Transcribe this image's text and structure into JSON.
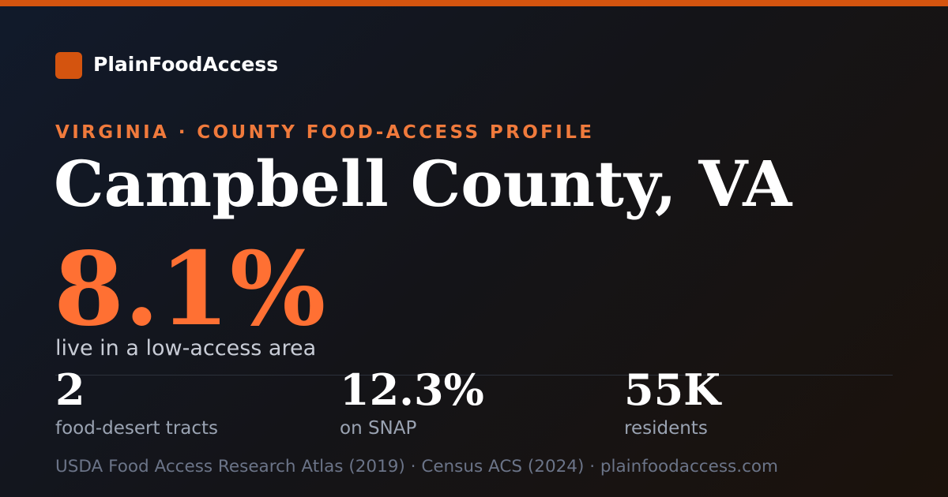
{
  "brand": {
    "name": "PlainFoodAccess"
  },
  "header": {
    "eyebrow": "VIRGINIA · COUNTY FOOD-ACCESS PROFILE",
    "title": "Campbell County, VA"
  },
  "headline": {
    "value": "8.1%",
    "label": "live in a low-access area"
  },
  "stats": [
    {
      "value": "2",
      "label": "food-desert tracts"
    },
    {
      "value": "12.3%",
      "label": "on SNAP"
    },
    {
      "value": "55K",
      "label": "residents"
    }
  ],
  "footer": {
    "sources": "USDA Food Access Research Atlas (2019) · Census ACS (2024) · plainfoodaccess.com"
  }
}
